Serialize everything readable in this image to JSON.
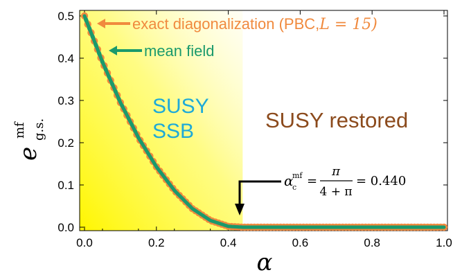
{
  "chart_data": {
    "type": "scatter",
    "xlabel": "α",
    "ylabel": {
      "base": "e",
      "sup": "mf",
      "sub": "g.s."
    },
    "xlim": [
      0.0,
      1.0
    ],
    "ylim": [
      0.0,
      0.5
    ],
    "x_ticks": [
      "0.0",
      "0.2",
      "0.4",
      "0.6",
      "0.8",
      "1.0"
    ],
    "y_ticks": [
      "0.0",
      "0.1",
      "0.2",
      "0.3",
      "0.4",
      "0.5"
    ],
    "grid": false,
    "alpha_c": 0.44,
    "series": [
      {
        "name": "exact diagonalization (PBC, L = 15)",
        "kind": "points",
        "color": "#f08a3e",
        "x": [
          0.0,
          0.05,
          0.1,
          0.15,
          0.2,
          0.25,
          0.3,
          0.35,
          0.4,
          0.44,
          0.5,
          0.6,
          0.7,
          0.8,
          0.9,
          1.0
        ],
        "y": [
          0.5,
          0.391,
          0.295,
          0.212,
          0.143,
          0.087,
          0.044,
          0.016,
          0.002,
          0.0,
          0.0,
          0.0,
          0.0,
          0.0,
          0.0,
          0.0
        ]
      },
      {
        "name": "mean field",
        "kind": "line",
        "color": "#1a9a6c",
        "x": [
          0.0,
          0.05,
          0.1,
          0.15,
          0.2,
          0.25,
          0.3,
          0.35,
          0.4,
          0.44,
          0.5,
          0.6,
          0.7,
          0.8,
          0.9,
          1.0
        ],
        "y": [
          0.5,
          0.391,
          0.295,
          0.212,
          0.143,
          0.087,
          0.044,
          0.016,
          0.002,
          0.0,
          0.0,
          0.0,
          0.0,
          0.0,
          0.0,
          0.0
        ]
      }
    ],
    "annotations": {
      "ed_label_prefix": "exact diagonalization (PBC,",
      "ed_label_var": "L",
      "ed_label_suffix": " = 15)",
      "mf_label": "mean field",
      "ssb_line1": "SUSY",
      "ssb_line2": "SSB",
      "restored": "SUSY restored",
      "alpha_c_lhs": "α",
      "alpha_c_sup": "mf",
      "alpha_c_sub": "c",
      "alpha_c_eq": "=",
      "alpha_c_num": "π",
      "alpha_c_den": "4 + π",
      "alpha_c_val": "= 0.440"
    },
    "colors": {
      "ed": "#f08a3e",
      "mf": "#1a9a6c",
      "ssb_text": "#1eaad8",
      "restored_text": "#8b4a1c",
      "shade_yellow": "#fff600"
    }
  }
}
